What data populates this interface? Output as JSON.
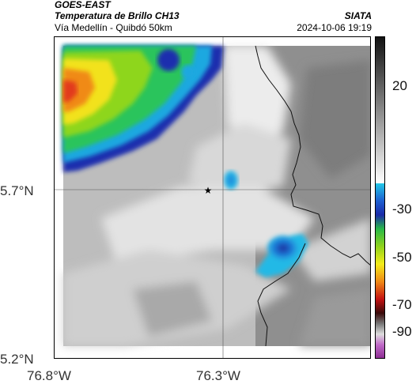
{
  "header": {
    "satellite": "GOES-EAST",
    "product": "Temperatura de Brillo CH13",
    "route": "Vía Medellín - Quibdó 50km",
    "brand": "SIATA",
    "datetime": "2024-10-06 19:19"
  },
  "axes": {
    "lon_ticks": [
      "76.8°W",
      "76.3°W"
    ],
    "lat_ticks": [
      "5.7°N",
      "5.2°N"
    ]
  },
  "colorbar": {
    "labels": [
      "20",
      "-30",
      "-50",
      "-70",
      "-90"
    ]
  },
  "marker": {
    "symbol": "★"
  }
}
